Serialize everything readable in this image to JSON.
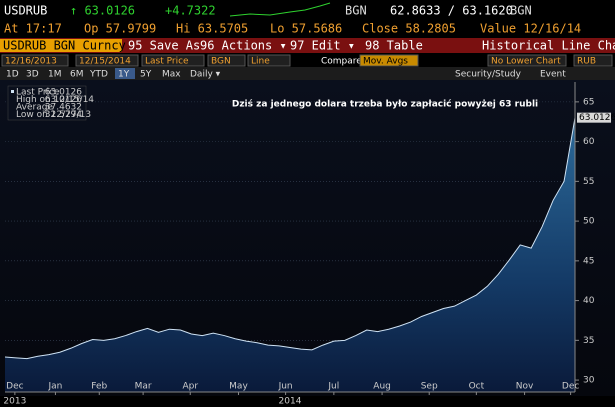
{
  "header": {
    "ticker": "USDRUB",
    "price": "↑ 63.0126",
    "change": "+4.7322",
    "source1": "BGN",
    "bidask": "62.8633 / 63.1620",
    "source2": "BGN",
    "stats": [
      "At 17:17",
      "Op 57.9799",
      "Hi 63.5705",
      "Lo 57.5686",
      "Close 58.2805",
      "Value 12/16/14"
    ],
    "menu": {
      "security": "USDRUB BGN Curncy",
      "buttons": [
        "95 Save As",
        "96 Actions ▾",
        "97 Edit ▾",
        "98 Table"
      ],
      "chart_type": "Historical Line Chart"
    },
    "controls": [
      "12/16/2013",
      "12/15/2014",
      "Last Price",
      "BGN",
      "Line",
      "Compare",
      "Mov. Avgs",
      "No Lower Chart",
      "RUB"
    ],
    "periods": [
      "1D",
      "3D",
      "1M",
      "6M",
      "YTD",
      "1Y",
      "5Y",
      "Max",
      "Daily ▾"
    ],
    "tools": [
      "Security/Study",
      "Event"
    ]
  },
  "chart_data": {
    "type": "area",
    "annotation": "Dziś za jednego dolara trzeba było zapłacić powyżej 63 rubli",
    "series": [
      {
        "name": "Last Price",
        "color": "#cfe3f5",
        "values": [
          32.9,
          32.8,
          32.7,
          33.0,
          33.2,
          33.5,
          34.0,
          34.6,
          35.1,
          35.0,
          35.2,
          35.6,
          36.1,
          36.5,
          36.0,
          36.4,
          36.3,
          35.8,
          35.6,
          35.9,
          35.6,
          35.2,
          34.9,
          34.7,
          34.4,
          34.3,
          34.1,
          33.9,
          33.8,
          34.4,
          34.9,
          35.0,
          35.6,
          36.3,
          36.1,
          36.4,
          36.8,
          37.3,
          38.0,
          38.5,
          39.0,
          39.3,
          40.0,
          40.7,
          41.8,
          43.3,
          45.1,
          47.0,
          46.6,
          49.3,
          52.6,
          55.0,
          63.0126
        ]
      }
    ],
    "legend": [
      {
        "label": "Last Price",
        "value": 63.0126
      },
      {
        "label": "High on 12/15/14",
        "value": 63.0126
      },
      {
        "label": "Average",
        "value": 37.4632
      },
      {
        "label": "Low on 12/27/13",
        "value": 32.5794
      }
    ],
    "xlim": [
      0,
      52
    ],
    "xticks": [
      {
        "value": 0.9,
        "label": "Dec"
      },
      {
        "value": 4.6,
        "label": "Jan"
      },
      {
        "value": 8.6,
        "label": "Feb"
      },
      {
        "value": 12.6,
        "label": "Mar"
      },
      {
        "value": 16.9,
        "label": "Apr"
      },
      {
        "value": 21.3,
        "label": "May"
      },
      {
        "value": 25.6,
        "label": "Jun"
      },
      {
        "value": 30.0,
        "label": "Jul"
      },
      {
        "value": 34.4,
        "label": "Aug"
      },
      {
        "value": 38.7,
        "label": "Sep"
      },
      {
        "value": 43.0,
        "label": "Oct"
      },
      {
        "value": 47.4,
        "label": "Nov"
      },
      {
        "value": 51.6,
        "label": "Dec"
      }
    ],
    "year_labels": [
      {
        "value": 0.9,
        "label": "2013"
      },
      {
        "value": 26.0,
        "label": "2014"
      }
    ],
    "ylim": [
      28.5,
      67.5
    ],
    "yticks": [
      30,
      35,
      40,
      45,
      50,
      55,
      60,
      65
    ],
    "grid": true
  }
}
